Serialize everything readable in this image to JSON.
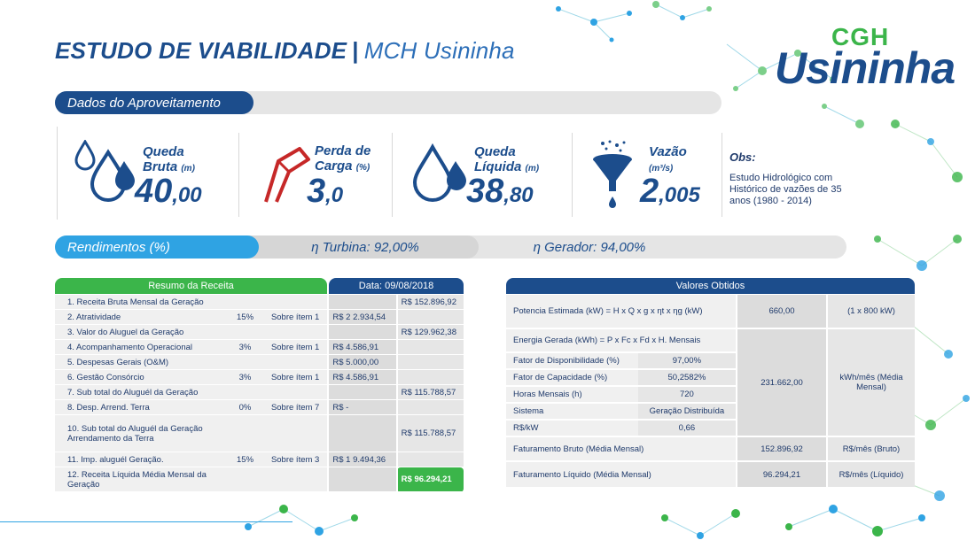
{
  "header": {
    "title": "ESTUDO DE VIABILIDADE",
    "separator": "|",
    "subtitle": "MCH Usininha",
    "logo_top": "CGH",
    "logo_name": "Usininha"
  },
  "aproveitamento": {
    "section_label": "Dados do Aproveitamento",
    "queda_bruta": {
      "label1": "Queda",
      "label2": "Bruta",
      "unit": "(m)",
      "int": "40",
      "dec": ",00"
    },
    "perda_carga": {
      "label1": "Perda de",
      "label2": "Carga",
      "unit": "(%)",
      "int": "3",
      "dec": ",0"
    },
    "queda_liquida": {
      "label1": "Queda",
      "label2": "Líquida",
      "unit": "(m)",
      "int": "38",
      "dec": ",80"
    },
    "vazao": {
      "label1": "Vazão",
      "unit": "(m³/s)",
      "int": "2",
      "dec": ",005"
    },
    "obs_title": "Obs:",
    "obs_text": "Estudo Hidrológico com Histórico de vazões de 35 anos (1980 - 2014)"
  },
  "rendimentos": {
    "label": "Rendimentos (%)",
    "turbina": "η Turbina: 92,00%",
    "gerador": "η Gerador: 94,00%"
  },
  "resumo": {
    "header": "Resumo da Receita",
    "date": "Data: 09/08/2018",
    "rows": [
      {
        "item": "1. Receita Bruta Mensal da Geração",
        "pct": "",
        "ref": "",
        "val": "",
        "tot": "R$ 152.896,92"
      },
      {
        "item": "2. Atratividade",
        "pct": "15%",
        "ref": "Sobre ítem 1",
        "val": "R$ 2 2.934,54",
        "tot": ""
      },
      {
        "item": "3. Valor do Aluguel da Geração",
        "pct": "",
        "ref": "",
        "val": "",
        "tot": "R$ 129.962,38"
      },
      {
        "item": "4. Acompanhamento Operacional",
        "pct": "3%",
        "ref": "Sobre ítem 1",
        "val": "R$ 4.586,91",
        "tot": ""
      },
      {
        "item": "5. Despesas Gerais (O&M)",
        "pct": "",
        "ref": "",
        "val": "R$ 5.000,00",
        "tot": ""
      },
      {
        "item": "6. Gestão Consórcio",
        "pct": "3%",
        "ref": "Sobre ítem 1",
        "val": "R$ 4.586,91",
        "tot": ""
      },
      {
        "item": "7. Sub total do Aluguél da Geração",
        "pct": "",
        "ref": "",
        "val": "",
        "tot": "R$ 115.788,57"
      },
      {
        "item": "8. Desp. Arrend. Terra",
        "pct": "0%",
        "ref": "Sobre ítem 7",
        "val": "R$ -",
        "tot": ""
      },
      {
        "item": "10. Sub total do Aluguél da Geração Arrendamento da Terra",
        "pct": "",
        "ref": "",
        "val": "",
        "tot": "R$ 115.788,57"
      },
      {
        "item": "11. Imp. aluguél Geração.",
        "pct": "15%",
        "ref": "Sobre ítem 3",
        "val": "R$ 1 9.494,36",
        "tot": ""
      },
      {
        "item": "12. Receita Líquida Média Mensal da Geração",
        "pct": "",
        "ref": "",
        "val": "",
        "tot": "R$ 96.294,21"
      }
    ]
  },
  "valores": {
    "header": "Valores Obtidos",
    "potencia_label": "Potencia Estimada (kW) = H x Q x g x ηt x ηg (kW)",
    "potencia_value": "660,00",
    "potencia_unit": "(1 x 800 kW)",
    "energia_label": "Energia Gerada (kWh) = P x Fc x Fd x H. Mensais",
    "energia_value": "231.662,00",
    "energia_unit": "kWh/mês (Média Mensal)",
    "params": [
      {
        "label": "Fator de Disponibilidade (%)",
        "value": "97,00%"
      },
      {
        "label": "Fator de Capacidade (%)",
        "value": "50,2582%"
      },
      {
        "label": "Horas Mensais (h)",
        "value": "720"
      },
      {
        "label": "Sistema",
        "value": "Geração Distribuída"
      },
      {
        "label": "R$/kW",
        "value": "0,66"
      }
    ],
    "fat_bruto_label": "Faturamento Bruto (Média Mensal)",
    "fat_bruto_value": "152.896,92",
    "fat_bruto_unit": "R$/mês (Bruto)",
    "fat_liq_label": "Faturamento Líquido (Média Mensal)",
    "fat_liq_value": "96.294,21",
    "fat_liq_unit": "R$/mês (Líquido)"
  },
  "colors": {
    "navy": "#1c4d8c",
    "blue": "#2fa3e3",
    "green": "#3bb54a",
    "red": "#c62828"
  }
}
